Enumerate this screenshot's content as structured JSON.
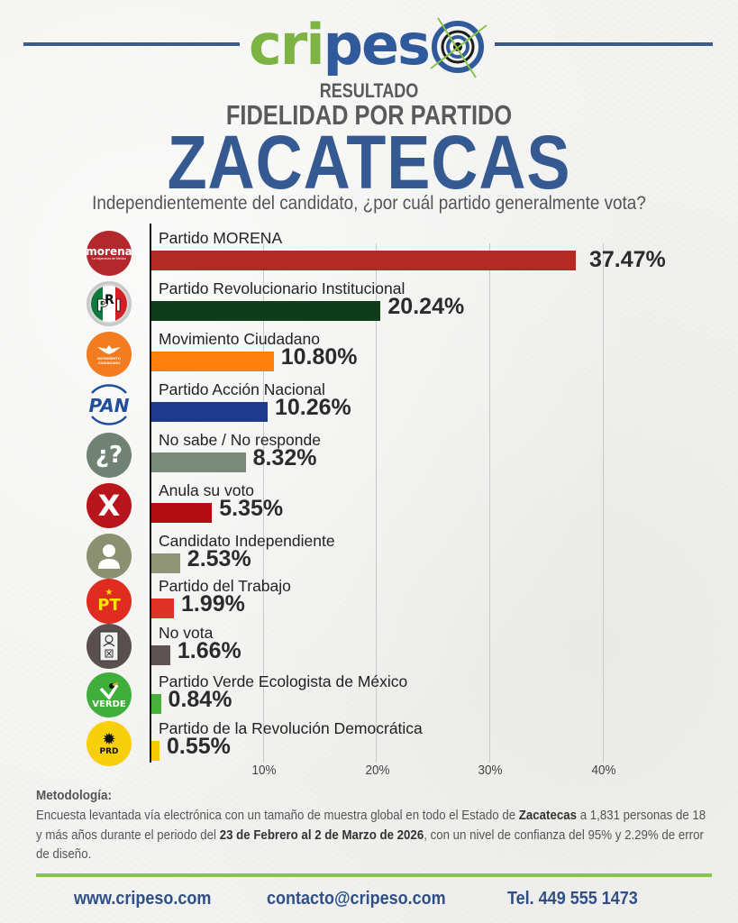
{
  "header": {
    "logo": {
      "text_green": "cri",
      "text_blue": "peso",
      "icon": "target-crosshair-icon"
    },
    "subtitle_1": "RESULTADO",
    "subtitle_2": "FIDELIDAD POR PARTIDO",
    "state": "ZACATECAS",
    "question": "Independientemente del candidato, ¿por cuál partido generalmente vota?"
  },
  "chart_data": {
    "type": "bar",
    "orientation": "horizontal",
    "title": "FIDELIDAD POR PARTIDO — ZACATECAS",
    "subtitle": "Independientemente del candidato, ¿por cuál partido generalmente vota?",
    "xlabel": "",
    "ylabel": "",
    "xlim": [
      0,
      50
    ],
    "x_ticks": [
      "10%",
      "20%",
      "30%",
      "40%"
    ],
    "grid": true,
    "legend": "none (party logos as row labels)",
    "categories": [
      "Partido MORENA",
      "Partido Revolucionario Institucional",
      "Movimiento Ciudadano",
      "Partido Acción Nacional",
      "No sabe / No responde",
      "Anula su voto",
      "Candidato Independiente",
      "Partido del Trabajo",
      "No vota",
      "Partido Verde Ecologista de México",
      "Partido de la Revolución Democrática"
    ],
    "values": [
      37.47,
      20.24,
      10.8,
      10.26,
      8.32,
      5.35,
      2.53,
      1.99,
      1.66,
      0.84,
      0.55
    ],
    "value_labels": [
      "37.47%",
      "20.24%",
      "10.80%",
      "10.26%",
      "8.32%",
      "5.35%",
      "2.53%",
      "1.99%",
      "1.66%",
      "0.84%",
      "0.55%"
    ],
    "colors": [
      "#b22a22",
      "#0e3d1c",
      "#ff7f0e",
      "#1e3a8c",
      "#7a8a7a",
      "#b30d12",
      "#8e9474",
      "#e03127",
      "#5e5252",
      "#46b03a",
      "#f5c800"
    ]
  },
  "rows": [
    {
      "label": "Partido MORENA",
      "value": 37.47,
      "value_label": "37.47%",
      "color": "#b22a22",
      "icon": "morena-logo-icon",
      "icon_bg": "#b3282d",
      "icon_text": "morena",
      "icon_sub": "La esperanza de México"
    },
    {
      "label": "Partido Revolucionario Institucional",
      "value": 20.24,
      "value_label": "20.24%",
      "color": "#0e3d1c",
      "icon": "pri-logo-icon",
      "icon_text": "PRI"
    },
    {
      "label": "Movimiento Ciudadano",
      "value": 10.8,
      "value_label": "10.80%",
      "color": "#ff7f0e",
      "icon": "movimiento-ciudadano-logo-icon",
      "icon_bg": "#f47c20",
      "icon_text": "MOVIMIENTO CIUDADANO"
    },
    {
      "label": "Partido Acción Nacional",
      "value": 10.26,
      "value_label": "10.26%",
      "color": "#1e3a8c",
      "icon": "pan-logo-icon",
      "icon_text": "PAN"
    },
    {
      "label": "No sabe / No responde",
      "value": 8.32,
      "value_label": "8.32%",
      "color": "#7a8a7a",
      "icon": "question-mark-icon",
      "icon_bg": "#6f8274",
      "icon_text": "¿?"
    },
    {
      "label": "Anula su voto",
      "value": 5.35,
      "value_label": "5.35%",
      "color": "#b30d12",
      "icon": "x-mark-icon",
      "icon_bg": "#b8161c",
      "icon_text": "X"
    },
    {
      "label": "Candidato Independiente",
      "value": 2.53,
      "value_label": "2.53%",
      "color": "#8e9474",
      "icon": "person-icon",
      "icon_bg": "#8a9070"
    },
    {
      "label": "Partido del Trabajo",
      "value": 1.99,
      "value_label": "1.99%",
      "color": "#e03127",
      "icon": "pt-logo-icon",
      "icon_bg": "#e02b20",
      "icon_text": "PT"
    },
    {
      "label": "No vota",
      "value": 1.66,
      "value_label": "1.66%",
      "color": "#5e5252",
      "icon": "ballot-icon",
      "icon_bg": "#5a4f4f"
    },
    {
      "label": "Partido Verde Ecologista de México",
      "value": 0.84,
      "value_label": "0.84%",
      "color": "#46b03a",
      "icon": "verde-logo-icon",
      "icon_bg": "#3fae3a",
      "icon_text": "VERDE"
    },
    {
      "label": "Partido de la Revolución Democrática",
      "value": 0.55,
      "value_label": "0.55%",
      "color": "#f5c800",
      "icon": "prd-logo-icon",
      "icon_bg": "#f7cf0a",
      "icon_text": "PRD"
    }
  ],
  "axis": {
    "ticks": [
      "10%",
      "20%",
      "30%",
      "40%"
    ]
  },
  "methodology": {
    "title": "Metodología:",
    "text_1": "Encuesta levantada vía electrónica con un tamaño de muestra global en todo el Estado de ",
    "bold_1": "Zacatecas",
    "text_2": " a 1,831 personas de 18 y más años durante el periodo del ",
    "bold_2": "23 de Febrero al 2 de Marzo de 2026",
    "text_3": ", con un nivel de confianza del 95% y 2.29% de error de diseño."
  },
  "footer": {
    "website": "www.cripeso.com",
    "email": "contacto@cripeso.com",
    "phone": "Tel. 449 555 1473"
  },
  "colors": {
    "brand_blue": "#2f5a9b",
    "brand_green": "#7cb342",
    "title_blue": "#355a92"
  }
}
